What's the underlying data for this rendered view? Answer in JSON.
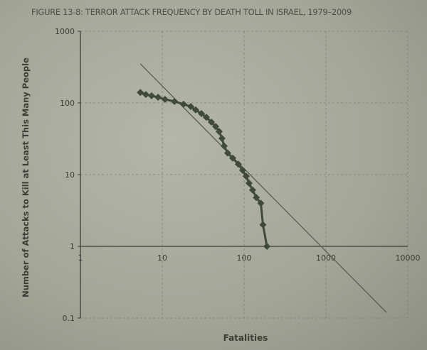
{
  "chart_data": {
    "type": "scatter",
    "title": "FIGURE 13-8: TERROR ATTACK FREQUENCY BY DEATH TOLL IN ISRAEL, 1979–2009",
    "xlabel": "Fatalities",
    "ylabel": "Number of Attacks to Kill at Least This Many People",
    "x_scale": "log",
    "y_scale": "log",
    "xlim": [
      1,
      10000
    ],
    "ylim": [
      0.1,
      1000
    ],
    "x_ticks": [
      "1",
      "10",
      "100",
      "1000",
      "10000"
    ],
    "y_ticks": [
      "0.1",
      "1",
      "10",
      "100",
      "1000"
    ],
    "grid": true,
    "marker": "diamond",
    "series": [
      {
        "x": [
          5.4,
          6.3,
          7.4,
          8.9,
          10.8,
          14.1,
          18.2,
          22.3,
          25.6,
          30.1,
          34.6,
          39.8,
          44.9,
          49.6,
          53.7,
          57.1,
          63,
          72.6,
          85,
          96,
          106,
          115,
          127,
          141,
          160,
          170,
          190
        ],
        "y": [
          140,
          131,
          126,
          120,
          112,
          105,
          96,
          89,
          80,
          71,
          63,
          54,
          47,
          40,
          32,
          25,
          20,
          17,
          14,
          11.5,
          9.5,
          7.6,
          6.1,
          4.8,
          4,
          2,
          1
        ]
      }
    ],
    "fit_line": {
      "x": [
        5.4,
        5480
      ],
      "y": [
        351,
        0.12
      ]
    },
    "colors": {
      "marker": "#3f4a3c",
      "line": "#5a5d55",
      "grid": "#7d8076",
      "text": "#3b3e36"
    }
  }
}
